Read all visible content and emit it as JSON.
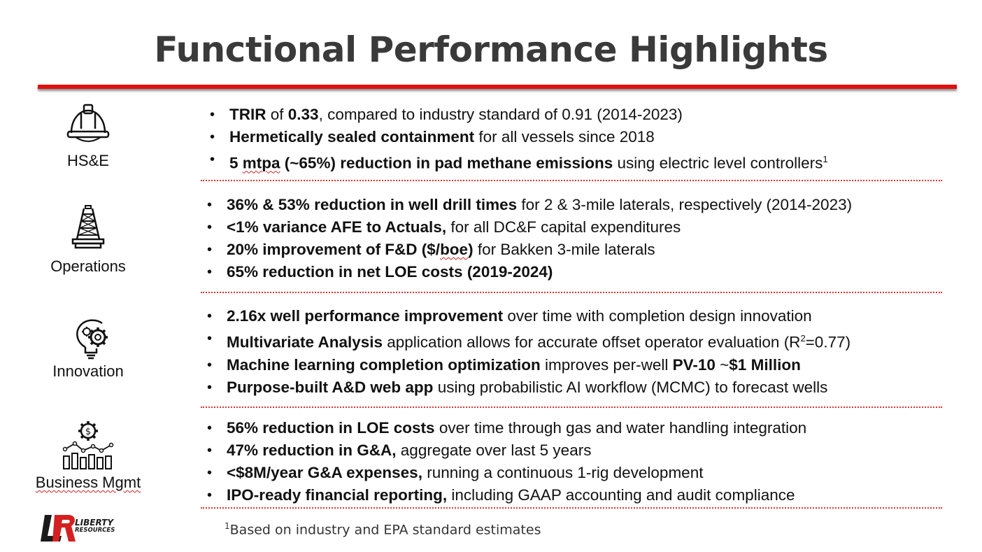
{
  "title": "Functional Performance Highlights",
  "sections": [
    {
      "label": "HS&E",
      "icon": "hard-hat-icon",
      "bullets": [
        {
          "bold1": "TRIR",
          "text1": " of ",
          "bold2": "0.33",
          "text2": ", compared to industry standard of 0.91 (2014-2023)"
        },
        {
          "bold1": "Hermetically sealed containment",
          "text1": " for all vessels since 2018"
        },
        {
          "bold1": "5 ",
          "bold_wavy": "mtpa",
          "bold2": " (~65%) reduction in pad methane emissions",
          "text1": " using electric level controllers",
          "sup": "1"
        }
      ]
    },
    {
      "label": "Operations",
      "icon": "oil-derrick-icon",
      "bullets": [
        {
          "bold1": "36% & 53% reduction in well drill times",
          "text1": " for 2 & 3-mile laterals, respectively (2014-2023)"
        },
        {
          "bold1": "<1% variance AFE to Actuals,",
          "text1": " for all DC&F capital expenditures"
        },
        {
          "bold1": "20% improvement of F&D ($/",
          "bold_wavy": "boe",
          "bold2": ")",
          "text1": " for Bakken 3-mile laterals"
        },
        {
          "bold1": "65% reduction in net LOE costs (2019-2024)"
        }
      ]
    },
    {
      "label": "Innovation",
      "icon": "lightbulb-gear-icon",
      "bullets": [
        {
          "bold1": "2.16x well performance improvement",
          "text1": " over time with completion design innovation"
        },
        {
          "bold1": "Multivariate Analysis",
          "text1": " application allows for accurate offset operator evaluation (R",
          "sup": "2",
          "text2": "=0.77)"
        },
        {
          "bold1": "Machine learning completion optimization",
          "text1": " improves per-well ",
          "bold2": "PV-10",
          "text2": " ~",
          "bold3": "$1 Million"
        },
        {
          "bold1": "Purpose-built A&D web app",
          "text1": " using probabilistic AI workflow (MCMC) to forecast wells"
        }
      ]
    },
    {
      "label": "Business Mgmt",
      "icon": "dollar-gear-chart-icon",
      "bullets": [
        {
          "bold1": "56% reduction in LOE costs",
          "text1": " over time through gas and water handling integration"
        },
        {
          "bold1": "47% reduction in G&A,",
          "text1": " aggregate over last 5 years"
        },
        {
          "bold1": "<$8M/year G&A expenses,",
          "text1": " running a continuous 1-rig development"
        },
        {
          "bold1": "IPO-ready financial reporting,",
          "text1": " including GAAP accounting and audit compliance"
        }
      ]
    }
  ],
  "footnote": {
    "sup": "1",
    "text": "Based on industry and EPA standard estimates"
  },
  "logo": {
    "line1": "LIBERTY",
    "line2": "RESOURCES"
  },
  "colors": {
    "accent": "#e01010",
    "title": "#3a3a3a"
  }
}
